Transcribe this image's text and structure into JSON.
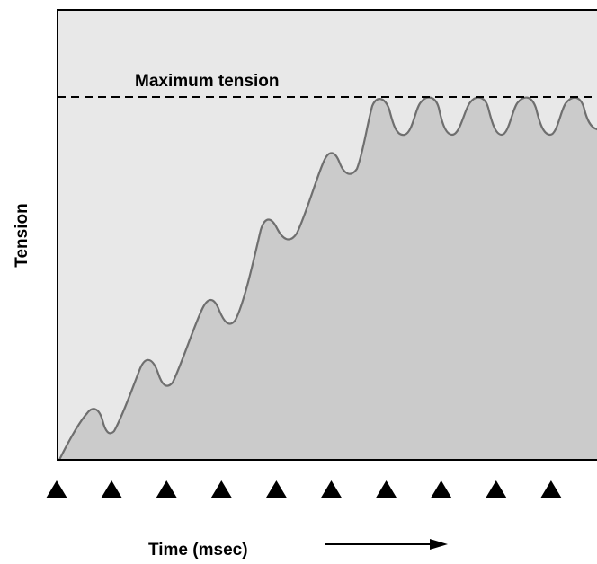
{
  "diagram": {
    "max_line_label": "Maximum tension",
    "y_axis_label": "Tension",
    "x_axis_label": "Time (msec)",
    "stimulus_count": 10
  },
  "colors": {
    "plot_background": "#e8e8e8",
    "area_fill": "#cbcbcb",
    "curve_stroke": "#6f6f6f",
    "frame": "#000000",
    "dashed_line": "#000000",
    "markers": "#000000"
  }
}
